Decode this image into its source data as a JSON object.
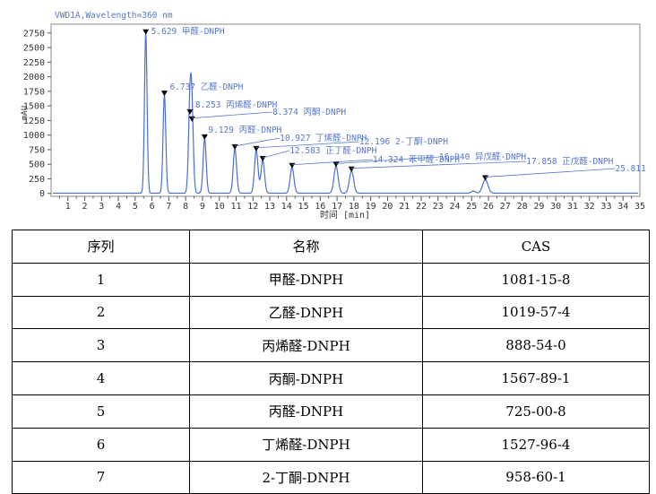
{
  "chart_data": {
    "type": "line",
    "title": "VWD1A,Wavelength=360 nm",
    "ylabel": "mAU",
    "xlabel": "时间 [min]",
    "xlim": [
      0,
      35
    ],
    "ylim": [
      -50,
      2900
    ],
    "xticks": [
      "1",
      "2",
      "3",
      "4",
      "5",
      "6",
      "7",
      "8",
      "9",
      "10",
      "11",
      "12",
      "13",
      "14",
      "15",
      "16",
      "17",
      "18",
      "19",
      "20",
      "21",
      "22",
      "23",
      "24",
      "25",
      "26",
      "27",
      "28",
      "29",
      "30",
      "31",
      "32",
      "33",
      "34",
      "35"
    ],
    "yticks": [
      "0",
      "250",
      "500",
      "750",
      "1000",
      "1250",
      "1500",
      "1750",
      "2000",
      "2250",
      "2500",
      "2750"
    ],
    "line_color": "#4a6fd0",
    "label_color": "#5577cc",
    "baseline": 5,
    "peaks": [
      {
        "rt": 5.629,
        "height": 2730,
        "label": "5.629 甲醛-DNPH"
      },
      {
        "rt": 6.737,
        "height": 1680,
        "label": "6.737 乙醛-DNPH"
      },
      {
        "rt": 8.253,
        "height": 1360,
        "label": "8.253 丙烯醛-DNPH"
      },
      {
        "rt": 8.374,
        "height": 1240,
        "label": "8.374 丙酮-DNPH"
      },
      {
        "rt": 9.129,
        "height": 930,
        "label": "9.129 丙醛-DNPH"
      },
      {
        "rt": 10.927,
        "height": 760,
        "label": "10.927 丁烯醛-DNPH"
      },
      {
        "rt": 12.196,
        "height": 730,
        "label": "12.196 2-丁酮-DNPH"
      },
      {
        "rt": 12.583,
        "height": 560,
        "label": "12.583 正丁醛-DNPH"
      },
      {
        "rt": 14.324,
        "height": 440,
        "label": "14.324 苯甲醛-DNPH"
      },
      {
        "rt": 16.94,
        "height": 460,
        "label": "16.940 异戊醛-DNPH"
      },
      {
        "rt": 17.858,
        "height": 380,
        "label": "17.858 正戊醛-DNPH"
      },
      {
        "rt": 25.811,
        "height": 230,
        "label": "25.811"
      }
    ]
  },
  "table": {
    "headers": [
      "序列",
      "名称",
      "CAS"
    ],
    "rows": [
      [
        "1",
        "甲醛-DNPH",
        "1081-15-8"
      ],
      [
        "2",
        "乙醛-DNPH",
        "1019-57-4"
      ],
      [
        "3",
        "丙烯醛-DNPH",
        "888-54-0"
      ],
      [
        "4",
        "丙酮-DNPH",
        "1567-89-1"
      ],
      [
        "5",
        "丙醛-DNPH",
        "725-00-8"
      ],
      [
        "6",
        "丁烯醛-DNPH",
        "1527-96-4"
      ],
      [
        "7",
        "2-丁酮-DNPH",
        "958-60-1"
      ]
    ]
  }
}
